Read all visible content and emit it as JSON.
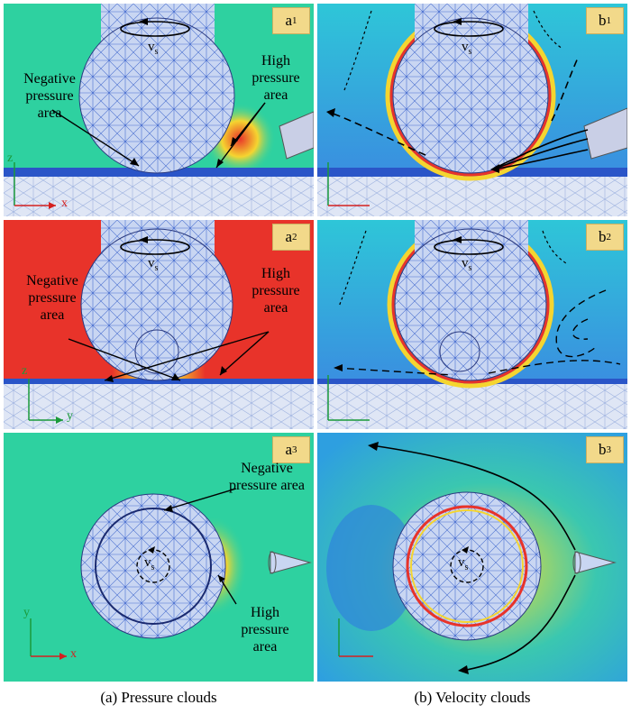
{
  "panels": {
    "a1": {
      "letter": "a",
      "index": "1"
    },
    "b1": {
      "letter": "b",
      "index": "1"
    },
    "a2": {
      "letter": "a",
      "index": "2"
    },
    "b2": {
      "letter": "b",
      "index": "2"
    },
    "a3": {
      "letter": "a",
      "index": "3"
    },
    "b3": {
      "letter": "b",
      "index": "3"
    }
  },
  "annotations": {
    "negative_line1": "Negative",
    "negative_line2": "pressure",
    "negative_line3": "area",
    "high_line1": "High",
    "high_line2": "pressure",
    "high_line3": "area"
  },
  "velocity": {
    "symbol": "v",
    "subscript": "s"
  },
  "axes": {
    "x": "x",
    "y": "y",
    "z": "z"
  },
  "captions": {
    "left": "(a) Pressure clouds",
    "right": "(b) Velocity clouds"
  },
  "colors": {
    "pressure_field": "#2ed1a0",
    "high_pressure": "#e8332a",
    "mesh": "#5b7fd6",
    "axis_red": "#d42020",
    "axis_green": "#1a9a3a"
  }
}
